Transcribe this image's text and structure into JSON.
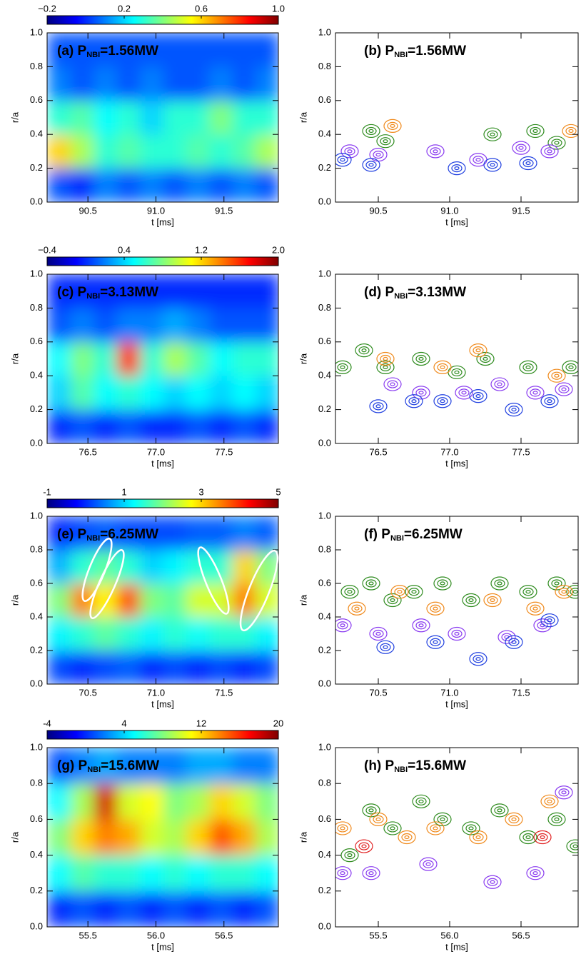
{
  "chart_data": [
    {
      "type": "heatmap",
      "title": [
        "(a) P",
        "NBI",
        "=1.56MW"
      ],
      "xlabel": "t [ms]",
      "ylabel": "r/a",
      "xlim": [
        90.2,
        91.9
      ],
      "xticks": [
        90.5,
        {
          "value": 91,
          "label": "91.0"
        },
        91.5
      ],
      "ylim": [
        0,
        1
      ],
      "yticks": [
        {
          "value": 0,
          "label": "0.0"
        },
        0.2,
        0.4,
        0.6,
        0.8,
        {
          "value": 1,
          "label": "1.0"
        }
      ],
      "zlim": [
        -0.2,
        1
      ],
      "zticks": [
        {
          "value": -0.2,
          "label": "−0.2"
        },
        0.2,
        0.6,
        {
          "value": 1,
          "label": "1.0"
        }
      ],
      "x": [
        90.29,
        90.46,
        90.63,
        90.8,
        90.97,
        91.14,
        91.31,
        91.48,
        91.65,
        91.82
      ],
      "y": [
        0.1,
        0.3,
        0.5,
        0.7,
        0.9
      ],
      "z": [
        [
          0.05,
          0.0,
          0.1,
          0.05,
          0.1,
          0.05,
          0.1,
          0.05,
          0.1,
          0.05
        ],
        [
          0.6,
          0.45,
          0.3,
          0.35,
          0.3,
          0.3,
          0.35,
          0.3,
          0.35,
          0.45
        ],
        [
          0.3,
          0.35,
          0.25,
          0.3,
          0.2,
          0.3,
          0.3,
          0.4,
          0.3,
          0.3
        ],
        [
          0.1,
          0.05,
          0.1,
          0.05,
          0.1,
          0.05,
          0.05,
          0.1,
          0.05,
          0.1
        ],
        [
          0.05,
          0.05,
          0.05,
          0.05,
          0.05,
          0.05,
          0.05,
          0.05,
          0.05,
          0.05
        ]
      ]
    },
    {
      "type": "contour",
      "title": [
        "(b) P",
        "NBI",
        "=1.56MW"
      ],
      "xlabel": "t [ms]",
      "ylabel": "r/a",
      "xlim": [
        90.2,
        91.9
      ],
      "xticks": [
        90.5,
        {
          "value": 91,
          "label": "91.0"
        },
        91.5
      ],
      "ylim": [
        0,
        1
      ],
      "yticks": [
        {
          "value": 0,
          "label": "0.0"
        },
        0.2,
        0.4,
        0.6,
        0.8,
        {
          "value": 1,
          "label": "1.0"
        }
      ],
      "series": [
        {
          "color": "#2e8b1e",
          "x": [
            90.45,
            90.55,
            91.3,
            91.6,
            91.75
          ],
          "y": [
            0.42,
            0.36,
            0.4,
            0.42,
            0.35
          ]
        },
        {
          "color": "#f08a1c",
          "x": [
            90.6,
            91.85
          ],
          "y": [
            0.45,
            0.42
          ]
        },
        {
          "color": "#8a3cf0",
          "x": [
            90.3,
            90.5,
            90.9,
            91.2,
            91.5,
            91.7
          ],
          "y": [
            0.3,
            0.28,
            0.3,
            0.25,
            0.32,
            0.3
          ]
        },
        {
          "color": "#2040e0",
          "x": [
            90.25,
            90.45,
            91.05,
            91.3,
            91.55
          ],
          "y": [
            0.25,
            0.22,
            0.2,
            0.22,
            0.23
          ]
        }
      ]
    },
    {
      "type": "heatmap",
      "title": [
        "(c) P",
        "NBI",
        "=3.13MW"
      ],
      "xlabel": "t [ms]",
      "ylabel": "r/a",
      "xlim": [
        76.2,
        77.9
      ],
      "xticks": [
        76.5,
        {
          "value": 77,
          "label": "77.0"
        },
        77.5
      ],
      "ylim": [
        0,
        1
      ],
      "yticks": [
        {
          "value": 0,
          "label": "0.0"
        },
        0.2,
        0.4,
        0.6,
        0.8,
        {
          "value": 1,
          "label": "1.0"
        }
      ],
      "zlim": [
        -0.4,
        2
      ],
      "zticks": [
        {
          "value": -0.4,
          "label": "−0.4"
        },
        0.4,
        1.2,
        {
          "value": 2,
          "label": "2.0"
        }
      ],
      "x": [
        76.29,
        76.46,
        76.63,
        76.8,
        76.97,
        77.14,
        77.31,
        77.48,
        77.65,
        77.82
      ],
      "y": [
        0.1,
        0.3,
        0.5,
        0.7,
        0.9
      ],
      "z": [
        [
          0.0,
          0.1,
          0.0,
          0.1,
          0.0,
          0.0,
          0.1,
          0.0,
          0.1,
          0.0
        ],
        [
          0.4,
          0.7,
          0.5,
          0.6,
          0.5,
          0.4,
          0.5,
          0.4,
          0.5,
          0.4
        ],
        [
          0.5,
          0.8,
          0.6,
          1.6,
          0.6,
          0.9,
          0.7,
          0.5,
          0.6,
          0.6
        ],
        [
          0.1,
          0.2,
          0.1,
          0.2,
          0.2,
          0.3,
          0.2,
          0.1,
          0.1,
          0.1
        ],
        [
          0.0,
          0.0,
          0.0,
          0.0,
          0.0,
          0.0,
          0.0,
          0.0,
          0.0,
          0.0
        ]
      ]
    },
    {
      "type": "contour",
      "title": [
        "(d) P",
        "NBI",
        "=3.13MW"
      ],
      "xlabel": "t [ms]",
      "ylabel": "r/a",
      "xlim": [
        76.2,
        77.9
      ],
      "xticks": [
        76.5,
        {
          "value": 77,
          "label": "77.0"
        },
        77.5
      ],
      "ylim": [
        0,
        1
      ],
      "yticks": [
        {
          "value": 0,
          "label": "0.0"
        },
        0.2,
        0.4,
        0.6,
        0.8,
        {
          "value": 1,
          "label": "1.0"
        }
      ],
      "series": [
        {
          "color": "#2e8b1e",
          "x": [
            76.25,
            76.4,
            76.55,
            76.8,
            77.05,
            77.25,
            77.55,
            77.85
          ],
          "y": [
            0.45,
            0.55,
            0.45,
            0.5,
            0.42,
            0.5,
            0.45,
            0.45
          ]
        },
        {
          "color": "#f08a1c",
          "x": [
            76.55,
            76.95,
            77.2,
            77.75
          ],
          "y": [
            0.5,
            0.45,
            0.55,
            0.4
          ]
        },
        {
          "color": "#8a3cf0",
          "x": [
            76.6,
            76.8,
            77.1,
            77.35,
            77.6,
            77.8
          ],
          "y": [
            0.35,
            0.3,
            0.3,
            0.35,
            0.3,
            0.32
          ]
        },
        {
          "color": "#2040e0",
          "x": [
            76.5,
            76.75,
            76.95,
            77.2,
            77.45,
            77.7
          ],
          "y": [
            0.22,
            0.25,
            0.25,
            0.28,
            0.2,
            0.25
          ]
        }
      ]
    },
    {
      "type": "heatmap",
      "title": [
        "(e) P",
        "NBI",
        "=6.25MW"
      ],
      "xlabel": "t [ms]",
      "ylabel": "r/a",
      "xlim": [
        70.2,
        71.9
      ],
      "xticks": [
        70.5,
        {
          "value": 71,
          "label": "71.0"
        },
        71.5
      ],
      "ylim": [
        0,
        1
      ],
      "yticks": [
        {
          "value": 0,
          "label": "0.0"
        },
        0.2,
        0.4,
        0.6,
        0.8,
        {
          "value": 1,
          "label": "1.0"
        }
      ],
      "zlim": [
        -1,
        5
      ],
      "zticks": [
        -1,
        1,
        3,
        5
      ],
      "x": [
        70.29,
        70.46,
        70.63,
        70.8,
        70.97,
        71.14,
        71.31,
        71.48,
        71.65,
        71.82
      ],
      "y": [
        0.1,
        0.3,
        0.5,
        0.7,
        0.9
      ],
      "z": [
        [
          0.2,
          0.0,
          0.2,
          0.3,
          0.0,
          0.2,
          0.0,
          0.2,
          0.0,
          0.2
        ],
        [
          1.2,
          1.5,
          1.8,
          1.5,
          1.2,
          1.5,
          1.3,
          1.5,
          1.5,
          1.2
        ],
        [
          2.0,
          3.5,
          2.8,
          3.8,
          2.0,
          1.8,
          2.5,
          2.5,
          3.5,
          2.5
        ],
        [
          0.8,
          1.5,
          1.8,
          1.5,
          1.0,
          1.2,
          1.5,
          1.5,
          3.0,
          2.0
        ],
        [
          0.0,
          0.2,
          0.3,
          0.2,
          0.2,
          0.2,
          0.3,
          0.3,
          0.5,
          0.3
        ]
      ]
    },
    {
      "type": "contour",
      "title": [
        "(f) P",
        "NBI",
        "=6.25MW"
      ],
      "xlabel": "t [ms]",
      "ylabel": "r/a",
      "xlim": [
        70.2,
        71.9
      ],
      "xticks": [
        70.5,
        {
          "value": 71,
          "label": "71.0"
        },
        71.5
      ],
      "ylim": [
        0,
        1
      ],
      "yticks": [
        {
          "value": 0,
          "label": "0.0"
        },
        0.2,
        0.4,
        0.6,
        0.8,
        {
          "value": 1,
          "label": "1.0"
        }
      ],
      "series": [
        {
          "color": "#2e8b1e",
          "x": [
            70.3,
            70.45,
            70.6,
            70.75,
            70.95,
            71.15,
            71.35,
            71.55,
            71.75,
            71.88
          ],
          "y": [
            0.55,
            0.6,
            0.5,
            0.55,
            0.6,
            0.5,
            0.6,
            0.55,
            0.6,
            0.55
          ]
        },
        {
          "color": "#f08a1c",
          "x": [
            70.35,
            70.65,
            70.9,
            71.3,
            71.6,
            71.8
          ],
          "y": [
            0.45,
            0.55,
            0.45,
            0.5,
            0.45,
            0.55
          ]
        },
        {
          "color": "#8a3cf0",
          "x": [
            70.25,
            70.5,
            70.8,
            71.05,
            71.4,
            71.65
          ],
          "y": [
            0.35,
            0.3,
            0.35,
            0.3,
            0.28,
            0.35
          ]
        },
        {
          "color": "#2040e0",
          "x": [
            70.55,
            70.9,
            71.2,
            71.45,
            71.7
          ],
          "y": [
            0.22,
            0.25,
            0.15,
            0.25,
            0.38
          ]
        }
      ]
    },
    {
      "type": "heatmap",
      "title": [
        "(g) P",
        "NBI",
        "=15.6MW"
      ],
      "xlabel": "t [ms]",
      "ylabel": "r/a",
      "xlim": [
        55.2,
        56.9
      ],
      "xticks": [
        55.5,
        {
          "value": 56,
          "label": "56.0"
        },
        56.5
      ],
      "ylim": [
        0,
        1
      ],
      "yticks": [
        {
          "value": 0,
          "label": "0.0"
        },
        0.2,
        0.4,
        0.6,
        0.8,
        {
          "value": 1,
          "label": "1.0"
        }
      ],
      "zlim": [
        -4,
        20
      ],
      "zticks": [
        -4,
        4,
        12,
        20
      ],
      "x": [
        55.29,
        55.46,
        55.63,
        55.8,
        55.97,
        56.14,
        56.31,
        56.48,
        56.65,
        56.82
      ],
      "y": [
        0.1,
        0.3,
        0.5,
        0.7,
        0.9
      ],
      "z": [
        [
          0,
          1,
          0,
          1,
          0,
          1,
          0,
          1,
          0,
          1
        ],
        [
          5,
          7,
          6,
          6,
          5,
          6,
          5,
          6,
          6,
          5
        ],
        [
          8,
          12,
          14,
          13,
          10,
          9,
          12,
          15,
          13,
          9
        ],
        [
          5,
          9,
          18,
          10,
          11,
          8,
          9,
          12,
          10,
          8
        ],
        [
          1,
          2,
          3,
          2,
          2,
          2,
          3,
          3,
          2,
          2
        ]
      ]
    },
    {
      "type": "contour",
      "title": [
        "(h) P",
        "NBI",
        "=15.6MW"
      ],
      "xlabel": "t [ms]",
      "ylabel": "r/a",
      "xlim": [
        55.2,
        56.9
      ],
      "xticks": [
        55.5,
        {
          "value": 56,
          "label": "56.0"
        },
        56.5
      ],
      "ylim": [
        0,
        1
      ],
      "yticks": [
        {
          "value": 0,
          "label": "0.0"
        },
        0.2,
        0.4,
        0.6,
        0.8,
        {
          "value": 1,
          "label": "1.0"
        }
      ],
      "series": [
        {
          "color": "#2e8b1e",
          "x": [
            55.3,
            55.45,
            55.6,
            55.8,
            55.95,
            56.15,
            56.35,
            56.55,
            56.75,
            56.88
          ],
          "y": [
            0.4,
            0.65,
            0.55,
            0.7,
            0.6,
            0.55,
            0.65,
            0.5,
            0.6,
            0.45
          ]
        },
        {
          "color": "#f08a1c",
          "x": [
            55.25,
            55.5,
            55.7,
            55.9,
            56.2,
            56.45,
            56.7
          ],
          "y": [
            0.55,
            0.6,
            0.5,
            0.55,
            0.5,
            0.6,
            0.7
          ]
        },
        {
          "color": "#8a3cf0",
          "x": [
            55.25,
            55.45,
            55.85,
            56.3,
            56.6,
            56.8
          ],
          "y": [
            0.3,
            0.3,
            0.35,
            0.25,
            0.3,
            0.75
          ]
        },
        {
          "color": "#e02020",
          "x": [
            55.4,
            56.65
          ],
          "y": [
            0.45,
            0.5
          ]
        }
      ]
    }
  ]
}
